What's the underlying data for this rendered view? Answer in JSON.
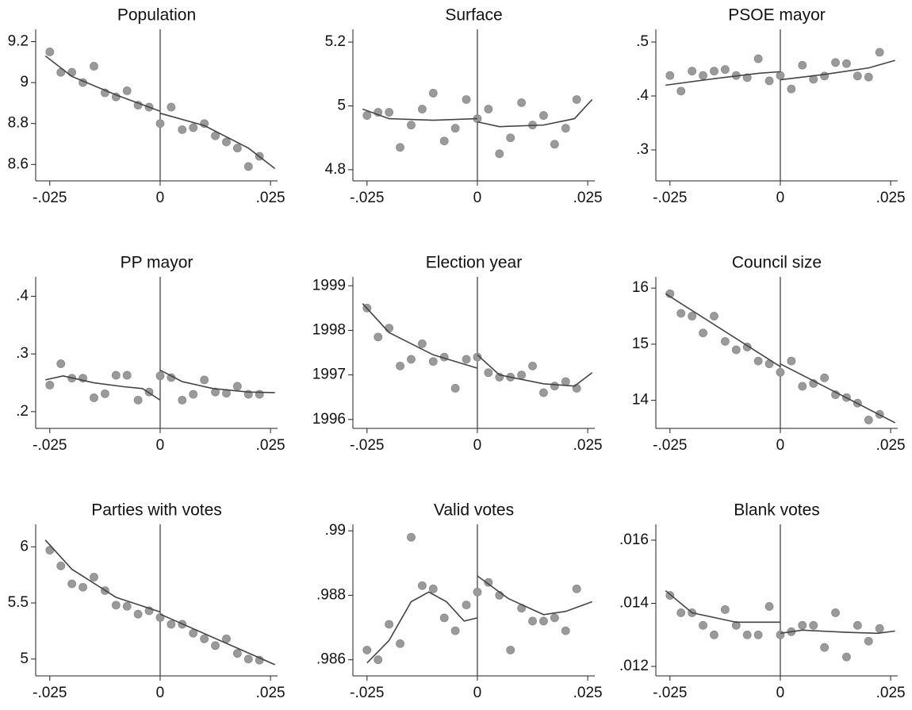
{
  "chart_data": [
    {
      "type": "scatter",
      "title": "Population",
      "xlim": [
        -0.0282,
        0.0266
      ],
      "ylim": [
        8.52,
        9.26
      ],
      "xticks": [
        {
          "value": -0.025,
          "label": "-.025"
        },
        0,
        {
          "value": 0.025,
          "label": ".025"
        }
      ],
      "yticks": [
        8.6,
        8.8,
        9,
        9.2
      ],
      "vline": 0,
      "points": {
        "color": "#9a9a9a",
        "x": [
          -0.025,
          -0.0225,
          -0.02,
          -0.0175,
          -0.015,
          -0.0125,
          -0.01,
          -0.0075,
          -0.005,
          -0.0025,
          0,
          0.0025,
          0.005,
          0.0075,
          0.01,
          0.0125,
          0.015,
          0.0175,
          0.02,
          0.0225
        ],
        "values": [
          9.15,
          9.05,
          9.05,
          9.0,
          9.08,
          8.95,
          8.93,
          8.96,
          8.89,
          8.88,
          8.8,
          8.88,
          8.77,
          8.78,
          8.8,
          8.74,
          8.71,
          8.68,
          8.59,
          8.64
        ]
      },
      "fits": [
        {
          "color": "#444444",
          "x": [
            -0.026,
            -0.02,
            -0.01,
            0
          ],
          "values": [
            9.13,
            9.03,
            8.94,
            8.86
          ]
        },
        {
          "color": "#444444",
          "x": [
            0,
            0.01,
            0.02,
            0.026
          ],
          "values": [
            8.85,
            8.79,
            8.68,
            8.58
          ]
        }
      ]
    },
    {
      "type": "scatter",
      "title": "Surface",
      "xlim": [
        -0.0282,
        0.0266
      ],
      "ylim": [
        4.765,
        5.24
      ],
      "xticks": [
        {
          "value": -0.025,
          "label": "-.025"
        },
        0,
        {
          "value": 0.025,
          "label": ".025"
        }
      ],
      "yticks": [
        4.8,
        5,
        5.2
      ],
      "vline": 0,
      "points": {
        "color": "#9a9a9a",
        "x": [
          -0.025,
          -0.0225,
          -0.02,
          -0.0175,
          -0.015,
          -0.0125,
          -0.01,
          -0.0075,
          -0.005,
          -0.0025,
          0,
          0.0025,
          0.005,
          0.0075,
          0.01,
          0.0125,
          0.015,
          0.0175,
          0.02,
          0.0225
        ],
        "values": [
          4.97,
          4.98,
          4.98,
          4.87,
          4.94,
          4.99,
          5.04,
          4.89,
          4.93,
          5.02,
          4.96,
          4.99,
          4.85,
          4.9,
          5.01,
          4.94,
          4.97,
          4.88,
          4.93,
          5.02
        ]
      },
      "fits": [
        {
          "color": "#444444",
          "x": [
            -0.026,
            -0.02,
            -0.01,
            0
          ],
          "values": [
            4.99,
            4.96,
            4.955,
            4.96
          ]
        },
        {
          "color": "#444444",
          "x": [
            0,
            0.005,
            0.015,
            0.022,
            0.026
          ],
          "values": [
            4.95,
            4.935,
            4.94,
            4.96,
            5.02
          ]
        }
      ]
    },
    {
      "type": "scatter",
      "title": "PSOE mayor",
      "xlim": [
        -0.0282,
        0.0266
      ],
      "ylim": [
        0.2426,
        0.5235
      ],
      "xticks": [
        {
          "value": -0.025,
          "label": "-.025"
        },
        0,
        {
          "value": 0.025,
          "label": ".025"
        }
      ],
      "yticks": [
        {
          "value": 0.3,
          "label": ".3"
        },
        {
          "value": 0.4,
          "label": ".4"
        },
        {
          "value": 0.5,
          "label": ".5"
        }
      ],
      "vline": 0,
      "points": {
        "color": "#9a9a9a",
        "x": [
          -0.025,
          -0.0225,
          -0.02,
          -0.0175,
          -0.015,
          -0.0125,
          -0.01,
          -0.0075,
          -0.005,
          -0.0025,
          0,
          0.0025,
          0.005,
          0.0075,
          0.01,
          0.0125,
          0.015,
          0.0175,
          0.02,
          0.0225
        ],
        "values": [
          0.438,
          0.409,
          0.446,
          0.438,
          0.446,
          0.449,
          0.438,
          0.434,
          0.469,
          0.428,
          0.438,
          0.413,
          0.457,
          0.431,
          0.437,
          0.462,
          0.46,
          0.437,
          0.435,
          0.481
        ]
      },
      "fits": [
        {
          "color": "#444444",
          "x": [
            -0.026,
            -0.015,
            -0.005,
            0
          ],
          "values": [
            0.42,
            0.432,
            0.442,
            0.445
          ]
        },
        {
          "color": "#444444",
          "x": [
            0,
            0.01,
            0.02,
            0.026
          ],
          "values": [
            0.43,
            0.44,
            0.452,
            0.466
          ]
        }
      ]
    },
    {
      "type": "scatter",
      "title": "PP mayor",
      "xlim": [
        -0.0282,
        0.0266
      ],
      "ylim": [
        0.171,
        0.4336
      ],
      "xticks": [
        {
          "value": -0.025,
          "label": "-.025"
        },
        0,
        {
          "value": 0.025,
          "label": ".025"
        }
      ],
      "yticks": [
        {
          "value": 0.2,
          "label": ".2"
        },
        {
          "value": 0.3,
          "label": ".3"
        },
        {
          "value": 0.4,
          "label": ".4"
        }
      ],
      "vline": 0,
      "points": {
        "color": "#9a9a9a",
        "x": [
          -0.025,
          -0.0225,
          -0.02,
          -0.0175,
          -0.015,
          -0.0125,
          -0.01,
          -0.0075,
          -0.005,
          -0.0025,
          0,
          0.0025,
          0.005,
          0.0075,
          0.01,
          0.0125,
          0.015,
          0.0175,
          0.02,
          0.0225
        ],
        "values": [
          0.246,
          0.283,
          0.258,
          0.258,
          0.224,
          0.231,
          0.263,
          0.263,
          0.22,
          0.234,
          0.262,
          0.259,
          0.22,
          0.23,
          0.255,
          0.234,
          0.232,
          0.244,
          0.23,
          0.23
        ]
      },
      "fits": [
        {
          "color": "#444444",
          "x": [
            -0.026,
            -0.022,
            -0.015,
            -0.008,
            -0.004,
            0
          ],
          "values": [
            0.255,
            0.262,
            0.25,
            0.243,
            0.24,
            0.22
          ]
        },
        {
          "color": "#444444",
          "x": [
            0,
            0.005,
            0.012,
            0.02,
            0.026
          ],
          "values": [
            0.272,
            0.252,
            0.24,
            0.234,
            0.233
          ]
        }
      ]
    },
    {
      "type": "scatter",
      "title": "Election year",
      "xlim": [
        -0.0282,
        0.0266
      ],
      "ylim": [
        1995.8,
        1999.2
      ],
      "xticks": [
        {
          "value": -0.025,
          "label": "-.025"
        },
        0,
        {
          "value": 0.025,
          "label": ".025"
        }
      ],
      "yticks": [
        1996,
        1997,
        1998,
        1999
      ],
      "vline": 0,
      "points": {
        "color": "#9a9a9a",
        "x": [
          -0.025,
          -0.0225,
          -0.02,
          -0.0175,
          -0.015,
          -0.0125,
          -0.01,
          -0.0075,
          -0.005,
          -0.0025,
          0,
          0.0025,
          0.005,
          0.0075,
          0.01,
          0.0125,
          0.015,
          0.0175,
          0.02,
          0.0225
        ],
        "values": [
          1998.5,
          1997.85,
          1998.05,
          1997.2,
          1997.35,
          1997.7,
          1997.3,
          1997.4,
          1996.7,
          1997.35,
          1997.4,
          1997.05,
          1996.95,
          1996.95,
          1997.0,
          1997.2,
          1996.6,
          1996.75,
          1996.85,
          1996.7
        ]
      },
      "fits": [
        {
          "color": "#444444",
          "x": [
            -0.026,
            -0.02,
            -0.01,
            0
          ],
          "values": [
            1998.6,
            1997.95,
            1997.45,
            1997.15
          ]
        },
        {
          "color": "#444444",
          "x": [
            0,
            0.005,
            0.015,
            0.022,
            0.026
          ],
          "values": [
            1997.45,
            1997.0,
            1996.8,
            1996.75,
            1997.05
          ]
        }
      ]
    },
    {
      "type": "scatter",
      "title": "Council size",
      "xlim": [
        -0.0282,
        0.0266
      ],
      "ylim": [
        13.5,
        16.2
      ],
      "xticks": [
        {
          "value": -0.025,
          "label": "-.025"
        },
        0,
        {
          "value": 0.025,
          "label": ".025"
        }
      ],
      "yticks": [
        14,
        15,
        16
      ],
      "vline": 0,
      "points": {
        "color": "#9a9a9a",
        "x": [
          -0.025,
          -0.0225,
          -0.02,
          -0.0175,
          -0.015,
          -0.0125,
          -0.01,
          -0.0075,
          -0.005,
          -0.0025,
          0,
          0.0025,
          0.005,
          0.0075,
          0.01,
          0.0125,
          0.015,
          0.0175,
          0.02,
          0.0225
        ],
        "values": [
          15.9,
          15.55,
          15.5,
          15.2,
          15.5,
          15.05,
          14.9,
          14.95,
          14.7,
          14.65,
          14.5,
          14.7,
          14.25,
          14.3,
          14.4,
          14.1,
          14.05,
          13.95,
          13.65,
          13.75
        ]
      },
      "fits": [
        {
          "color": "#444444",
          "x": [
            -0.026,
            0
          ],
          "values": [
            15.9,
            14.6
          ]
        },
        {
          "color": "#444444",
          "x": [
            0,
            0.026
          ],
          "values": [
            14.65,
            13.6
          ]
        }
      ]
    },
    {
      "type": "scatter",
      "title": "Parties with votes",
      "xlim": [
        -0.0282,
        0.0266
      ],
      "ylim": [
        4.85,
        6.2
      ],
      "xticks": [
        {
          "value": -0.025,
          "label": "-.025"
        },
        0,
        {
          "value": 0.025,
          "label": ".025"
        }
      ],
      "yticks": [
        5,
        5.5,
        6
      ],
      "vline": 0,
      "points": {
        "color": "#9a9a9a",
        "x": [
          -0.025,
          -0.0225,
          -0.02,
          -0.0175,
          -0.015,
          -0.0125,
          -0.01,
          -0.0075,
          -0.005,
          -0.0025,
          0,
          0.0025,
          0.005,
          0.0075,
          0.01,
          0.0125,
          0.015,
          0.0175,
          0.02,
          0.0225
        ],
        "values": [
          5.97,
          5.83,
          5.67,
          5.64,
          5.73,
          5.61,
          5.48,
          5.47,
          5.4,
          5.43,
          5.37,
          5.31,
          5.31,
          5.23,
          5.18,
          5.12,
          5.18,
          5.05,
          5.0,
          4.99
        ]
      },
      "fits": [
        {
          "color": "#444444",
          "x": [
            -0.026,
            -0.02,
            -0.01,
            0
          ],
          "values": [
            6.06,
            5.8,
            5.55,
            5.42
          ]
        },
        {
          "color": "#444444",
          "x": [
            0,
            0.026
          ],
          "values": [
            5.4,
            4.95
          ]
        }
      ]
    },
    {
      "type": "scatter",
      "title": "Valid votes",
      "xlim": [
        -0.0282,
        0.0266
      ],
      "ylim": [
        0.9855,
        0.9902
      ],
      "xticks": [
        {
          "value": -0.025,
          "label": "-.025"
        },
        0,
        {
          "value": 0.025,
          "label": ".025"
        }
      ],
      "yticks": [
        {
          "value": 0.986,
          "label": ".986"
        },
        {
          "value": 0.988,
          "label": ".988"
        },
        {
          "value": 0.99,
          "label": ".99"
        }
      ],
      "vline": 0,
      "points": {
        "color": "#9a9a9a",
        "x": [
          -0.025,
          -0.0225,
          -0.02,
          -0.0175,
          -0.015,
          -0.0125,
          -0.01,
          -0.0075,
          -0.005,
          -0.0025,
          0,
          0.0025,
          0.005,
          0.0075,
          0.01,
          0.0125,
          0.015,
          0.0175,
          0.02,
          0.0225
        ],
        "values": [
          0.9863,
          0.986,
          0.9871,
          0.9865,
          0.9898,
          0.9883,
          0.9882,
          0.9873,
          0.9869,
          0.9877,
          0.9881,
          0.9884,
          0.988,
          0.9863,
          0.9876,
          0.9872,
          0.9872,
          0.9873,
          0.9869,
          0.9882
        ]
      },
      "fits": [
        {
          "color": "#444444",
          "x": [
            -0.025,
            -0.02,
            -0.015,
            -0.011,
            -0.007,
            -0.003,
            0
          ],
          "values": [
            0.9859,
            0.9866,
            0.9878,
            0.9881,
            0.9878,
            0.9872,
            0.9873
          ]
        },
        {
          "color": "#444444",
          "x": [
            0,
            0.007,
            0.015,
            0.02,
            0.026
          ],
          "values": [
            0.9886,
            0.9879,
            0.9874,
            0.9875,
            0.9878
          ]
        }
      ]
    },
    {
      "type": "scatter",
      "title": "Blank votes",
      "xlim": [
        -0.0282,
        0.0266
      ],
      "ylim": [
        0.0117,
        0.0165
      ],
      "xticks": [
        {
          "value": -0.025,
          "label": "-.025"
        },
        0,
        {
          "value": 0.025,
          "label": ".025"
        }
      ],
      "yticks": [
        {
          "value": 0.012,
          "label": ".012"
        },
        {
          "value": 0.014,
          "label": ".014"
        },
        {
          "value": 0.016,
          "label": ".016"
        }
      ],
      "vline": 0,
      "points": {
        "color": "#9a9a9a",
        "x": [
          -0.025,
          -0.0225,
          -0.02,
          -0.0175,
          -0.015,
          -0.0125,
          -0.01,
          -0.0075,
          -0.005,
          -0.0025,
          0,
          0.0025,
          0.005,
          0.0075,
          0.01,
          0.0125,
          0.015,
          0.0175,
          0.02,
          0.0225
        ],
        "values": [
          0.01425,
          0.0137,
          0.0137,
          0.0133,
          0.013,
          0.0138,
          0.0133,
          0.013,
          0.013,
          0.0139,
          0.013,
          0.0131,
          0.0133,
          0.0133,
          0.0126,
          0.0137,
          0.0123,
          0.0133,
          0.0128,
          0.0132
        ]
      },
      "fits": [
        {
          "color": "#444444",
          "x": [
            -0.026,
            -0.02,
            -0.01,
            0
          ],
          "values": [
            0.0144,
            0.0137,
            0.0134,
            0.0134
          ]
        },
        {
          "color": "#444444",
          "x": [
            0,
            0.005,
            0.015,
            0.022,
            0.026
          ],
          "values": [
            0.01305,
            0.01315,
            0.01308,
            0.01305,
            0.01312
          ]
        }
      ]
    }
  ]
}
